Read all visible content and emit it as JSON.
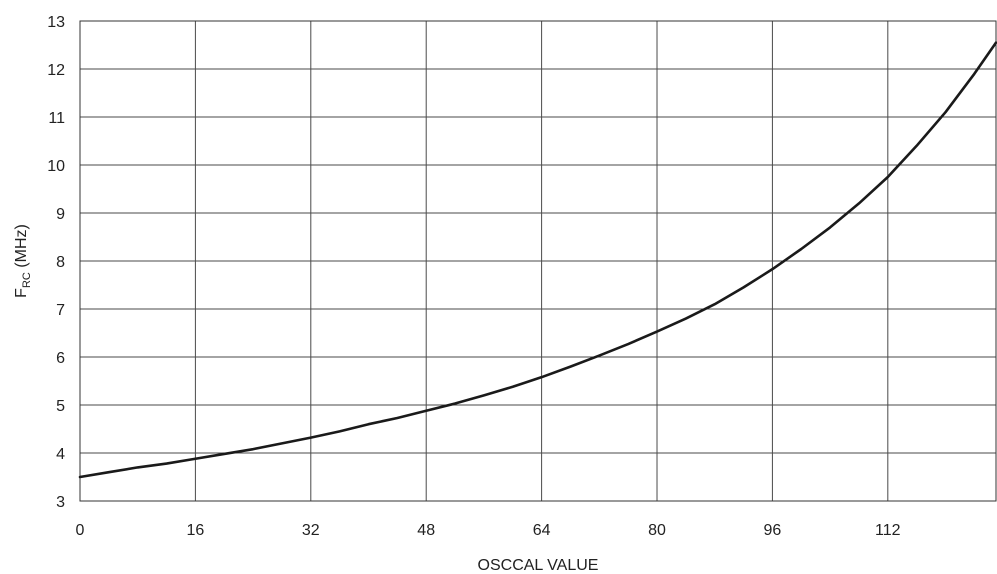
{
  "chart_data": {
    "type": "line",
    "title": "",
    "xlabel": "OSCCAL VALUE",
    "ylabel_main": "F",
    "ylabel_sub": "RC",
    "ylabel_rest": " (MHz)",
    "xlim": [
      0,
      127
    ],
    "ylim": [
      3,
      13
    ],
    "x_ticks": [
      0,
      16,
      32,
      48,
      64,
      80,
      96,
      112
    ],
    "y_ticks": [
      3,
      4,
      5,
      6,
      7,
      8,
      9,
      10,
      11,
      12,
      13
    ],
    "grid": true,
    "legend": "none",
    "series_color": "#1a1a1a",
    "series": [
      {
        "x": [
          0,
          4,
          8,
          12,
          16,
          20,
          24,
          28,
          32,
          36,
          40,
          44,
          48,
          52,
          56,
          60,
          64,
          68,
          72,
          76,
          80,
          84,
          88,
          92,
          96,
          100,
          104,
          108,
          112,
          116,
          120,
          124,
          127
        ],
        "y": [
          3.5,
          3.6,
          3.7,
          3.78,
          3.88,
          3.98,
          4.08,
          4.2,
          4.32,
          4.45,
          4.6,
          4.73,
          4.88,
          5.03,
          5.2,
          5.38,
          5.58,
          5.8,
          6.03,
          6.27,
          6.53,
          6.8,
          7.1,
          7.45,
          7.83,
          8.25,
          8.7,
          9.2,
          9.75,
          10.4,
          11.1,
          11.9,
          12.55
        ]
      }
    ]
  }
}
